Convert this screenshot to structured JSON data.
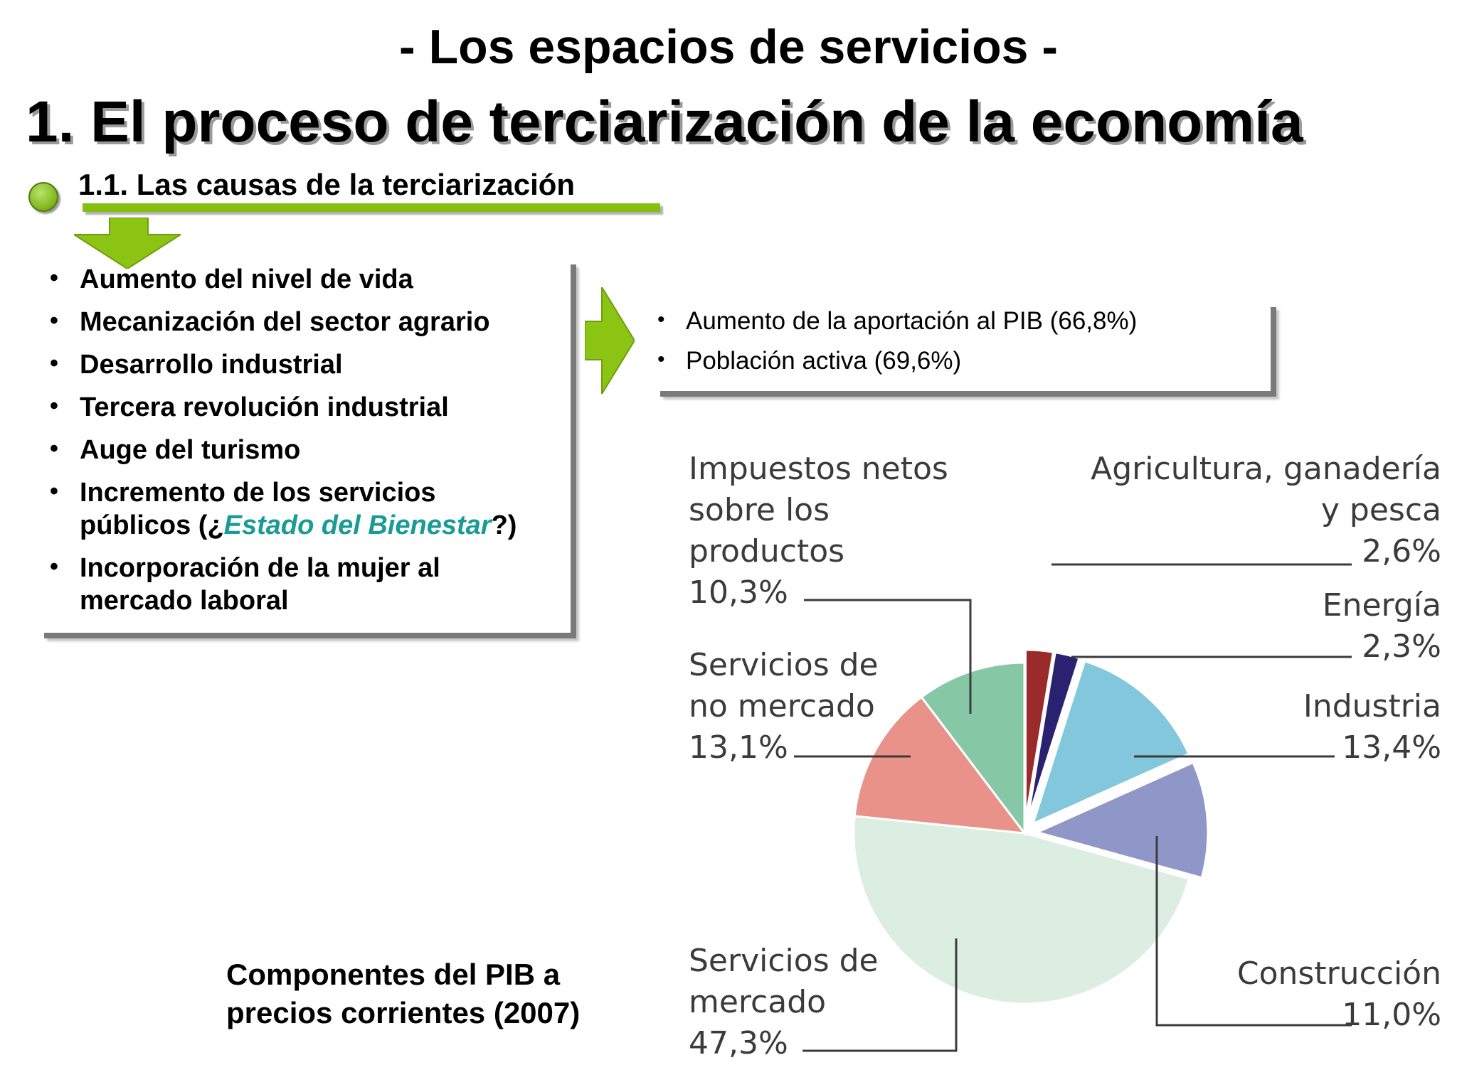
{
  "header": {
    "title": "- Los espacios de servicios -",
    "section": "1. El proceso de terciarización de la economía",
    "subsection": "1.1. Las causas de la terciarización"
  },
  "causes": [
    "Aumento del nivel de vida",
    "Mecanización del sector agrario",
    "Desarrollo industrial",
    "Tercera revolución industrial",
    "Auge del turismo",
    {
      "line1": "Incremento de los servicios",
      "line2_prefix": "públicos (¿",
      "line2_highlight": "Estado del Bienestar",
      "line2_suffix": "?)"
    },
    {
      "line1": "Incorporación de la mujer al",
      "line2": "mercado laboral"
    }
  ],
  "effects": [
    "Aumento de la aportación al PIB (66,8%)",
    "Población activa (69,6%)"
  ],
  "caption": {
    "line1": "Componentes del PIB a",
    "line2": "precios corrientes (2007)"
  },
  "colors": {
    "accent_green": "#86c00f",
    "highlight_teal": "#1a9b95"
  },
  "chart_data": {
    "type": "pie",
    "slices": [
      {
        "label_lines": [
          "Agricultura, ganadería",
          "y pesca"
        ],
        "value_text": "2,6%",
        "value": 2.6,
        "color": "#9b2a2a",
        "exploded": true
      },
      {
        "label_lines": [
          "Energía"
        ],
        "value_text": "2,3%",
        "value": 2.3,
        "color": "#2a2270",
        "exploded": true
      },
      {
        "label_lines": [
          "Industria"
        ],
        "value_text": "13,4%",
        "value": 13.4,
        "color": "#82c7dc",
        "exploded": true
      },
      {
        "label_lines": [
          "Construcción"
        ],
        "value_text": "11,0%",
        "value": 11.0,
        "color": "#8f97c8",
        "exploded": true
      },
      {
        "label_lines": [
          "Servicios de",
          "mercado"
        ],
        "value_text": "47,3%",
        "value": 47.3,
        "color": "#dcede1",
        "exploded": false
      },
      {
        "label_lines": [
          "Servicios de",
          "no mercado"
        ],
        "value_text": "13,1%",
        "value": 13.1,
        "color": "#e99289",
        "exploded": false
      },
      {
        "label_lines": [
          "Impuestos netos",
          "sobre los",
          "productos"
        ],
        "value_text": "10,3%",
        "value": 10.3,
        "color": "#86c8a6",
        "exploded": false
      }
    ]
  }
}
